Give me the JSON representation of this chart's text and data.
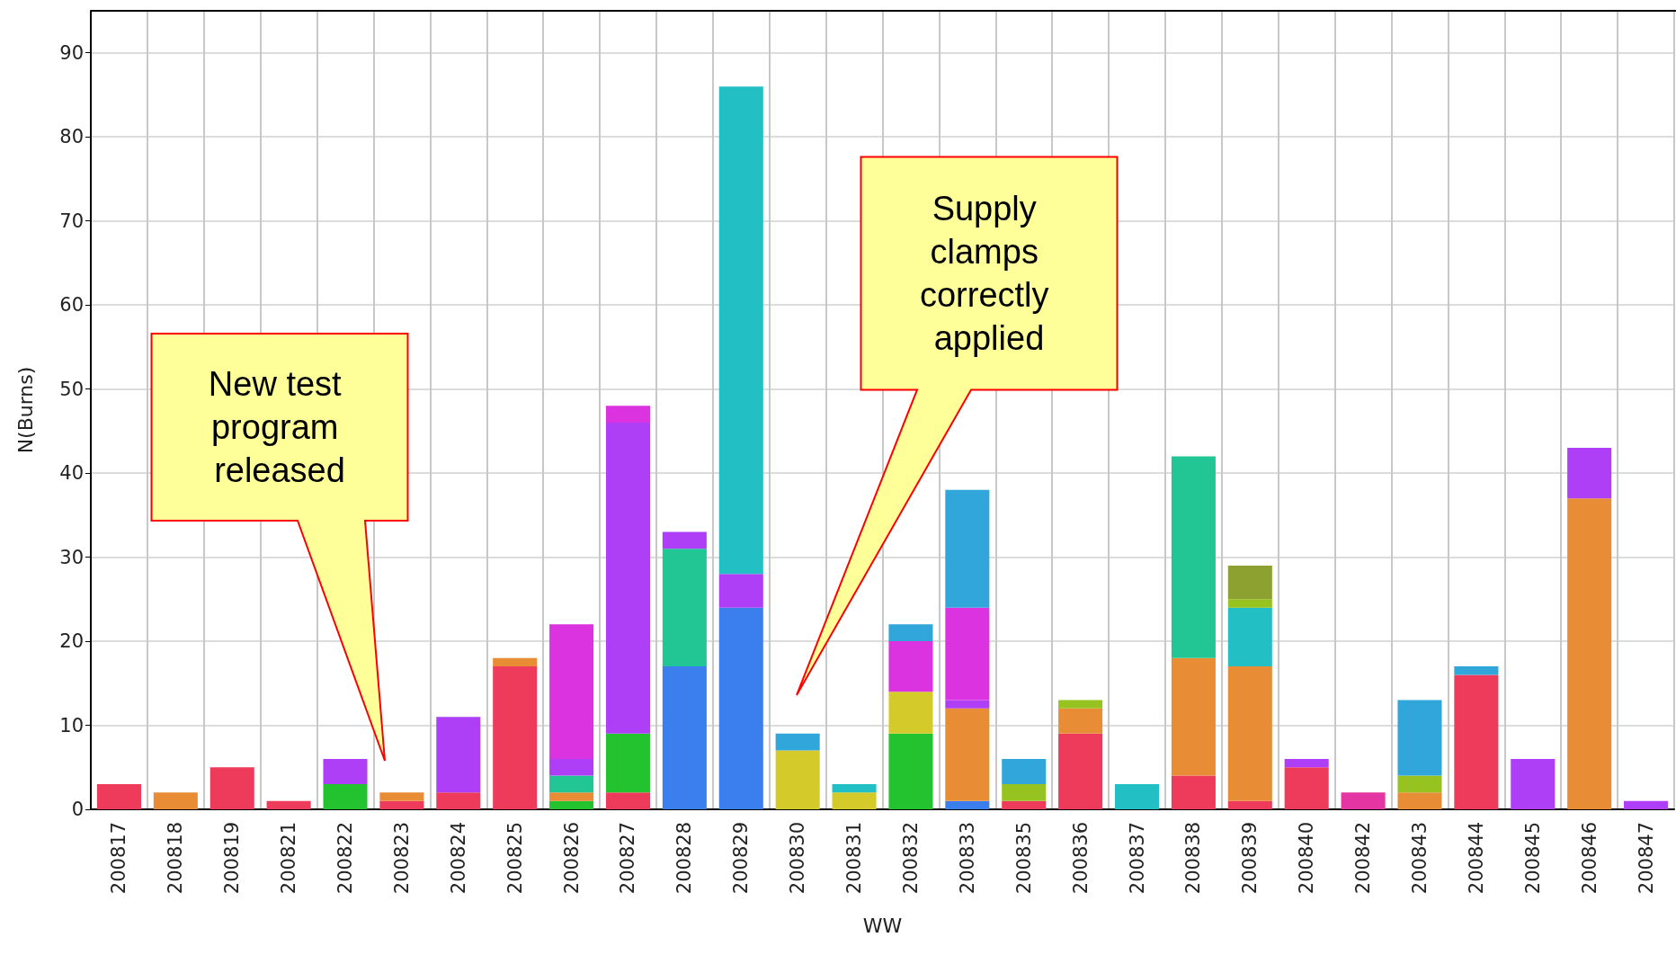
{
  "chart_data": {
    "type": "bar",
    "stacked": true,
    "grid": true,
    "xlabel": "WW",
    "ylabel": "N(Burns)",
    "categories": [
      "200817",
      "200818",
      "200819",
      "200821",
      "200822",
      "200823",
      "200824",
      "200825",
      "200826",
      "200827",
      "200828",
      "200829",
      "200830",
      "200831",
      "200832",
      "200833",
      "200835",
      "200836",
      "200837",
      "200838",
      "200839",
      "200840",
      "200842",
      "200843",
      "200844",
      "200845",
      "200846",
      "200847"
    ],
    "ylim": [
      0,
      95
    ],
    "yticks": [
      0,
      10,
      20,
      30,
      40,
      50,
      60,
      70,
      80,
      90
    ],
    "series": [
      {
        "color": "#ee3a5b",
        "values": [
          3,
          null,
          5,
          1,
          null,
          1,
          2,
          17,
          null,
          2,
          null,
          null,
          null,
          null,
          null,
          null,
          1,
          9,
          null,
          4,
          1,
          5,
          null,
          null,
          16,
          null,
          null,
          null
        ]
      },
      {
        "color": "#3b7eed",
        "values": [
          null,
          null,
          null,
          null,
          null,
          null,
          null,
          null,
          null,
          null,
          17,
          24,
          null,
          null,
          null,
          1,
          null,
          null,
          null,
          null,
          null,
          null,
          null,
          null,
          null,
          null,
          null,
          null
        ]
      },
      {
        "color": "#22c32f",
        "values": [
          null,
          null,
          null,
          null,
          3,
          null,
          null,
          null,
          1,
          7,
          null,
          null,
          null,
          null,
          9,
          null,
          null,
          null,
          null,
          null,
          null,
          null,
          null,
          null,
          null,
          null,
          null,
          null
        ]
      },
      {
        "color": "#e88d36",
        "values": [
          null,
          2,
          null,
          null,
          null,
          1,
          null,
          1,
          1,
          null,
          null,
          null,
          null,
          null,
          null,
          11,
          null,
          3,
          null,
          14,
          16,
          null,
          null,
          2,
          null,
          null,
          37,
          null
        ]
      },
      {
        "color": "#d4cb2a",
        "values": [
          null,
          null,
          null,
          null,
          null,
          null,
          null,
          null,
          null,
          null,
          null,
          null,
          7,
          2,
          5,
          null,
          null,
          null,
          null,
          null,
          null,
          null,
          null,
          null,
          null,
          null,
          null,
          null
        ]
      },
      {
        "color": "#22c594",
        "values": [
          null,
          null,
          null,
          null,
          null,
          null,
          null,
          null,
          2,
          null,
          14,
          null,
          null,
          null,
          null,
          null,
          null,
          null,
          null,
          24,
          null,
          null,
          null,
          null,
          null,
          null,
          null,
          null
        ]
      },
      {
        "color": "#ae3ff6",
        "values": [
          null,
          null,
          null,
          null,
          3,
          null,
          9,
          null,
          2,
          37,
          2,
          4,
          null,
          null,
          null,
          1,
          null,
          null,
          null,
          null,
          null,
          1,
          null,
          null,
          null,
          6,
          6,
          1
        ]
      },
      {
        "color": "#dc33e0",
        "values": [
          null,
          null,
          null,
          null,
          null,
          null,
          null,
          null,
          16,
          2,
          null,
          null,
          null,
          null,
          6,
          11,
          null,
          null,
          null,
          null,
          null,
          null,
          null,
          null,
          null,
          null,
          null,
          null
        ]
      },
      {
        "color": "#22bfc4",
        "values": [
          null,
          null,
          null,
          null,
          null,
          null,
          null,
          null,
          null,
          null,
          null,
          58,
          null,
          1,
          null,
          null,
          null,
          null,
          3,
          null,
          7,
          null,
          null,
          null,
          null,
          null,
          null,
          null
        ]
      },
      {
        "color": "#97c321",
        "values": [
          null,
          null,
          null,
          null,
          null,
          null,
          null,
          null,
          null,
          null,
          null,
          null,
          null,
          null,
          null,
          null,
          2,
          1,
          null,
          null,
          1,
          null,
          null,
          2,
          null,
          null,
          null,
          null
        ]
      },
      {
        "color": "#30a6db",
        "values": [
          null,
          null,
          null,
          null,
          null,
          null,
          null,
          null,
          null,
          null,
          null,
          null,
          2,
          null,
          2,
          14,
          3,
          null,
          null,
          null,
          null,
          null,
          null,
          9,
          1,
          null,
          null,
          null
        ]
      },
      {
        "color": "#8ca130",
        "values": [
          null,
          null,
          null,
          null,
          null,
          null,
          null,
          null,
          null,
          null,
          null,
          null,
          null,
          null,
          null,
          null,
          null,
          null,
          null,
          null,
          4,
          null,
          null,
          null,
          null,
          null,
          null,
          null
        ]
      },
      {
        "color": "#e435a3",
        "values": [
          null,
          null,
          null,
          null,
          null,
          null,
          null,
          null,
          null,
          null,
          null,
          null,
          null,
          null,
          null,
          null,
          null,
          null,
          null,
          null,
          null,
          null,
          2,
          null,
          null,
          null,
          null,
          null
        ]
      }
    ],
    "annotations": [
      "New test program released",
      "Supply clamps correctly applied"
    ]
  }
}
